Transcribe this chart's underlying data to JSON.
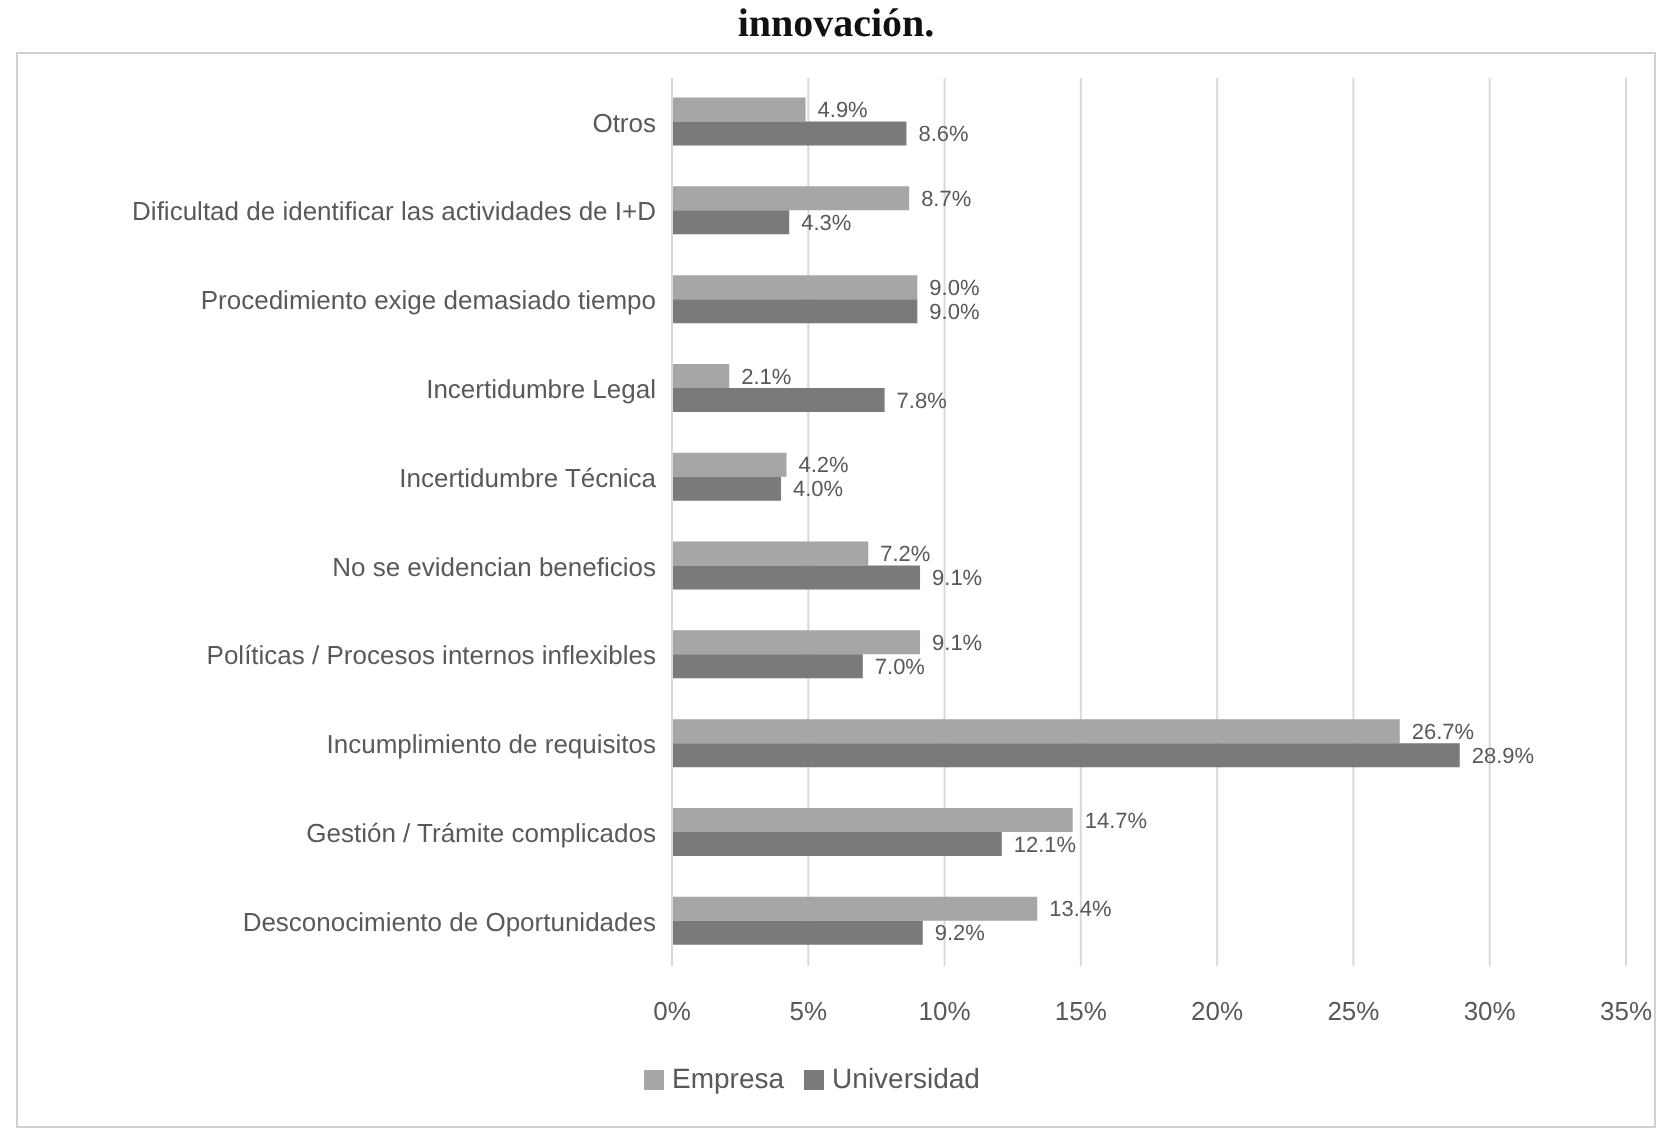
{
  "chart_data": {
    "type": "bar",
    "orientation": "horizontal",
    "title": "innovación.",
    "categories": [
      "Otros",
      "Dificultad de identificar las actividades de I+D",
      "Procedimiento exige demasiado tiempo",
      "Incertidumbre Legal",
      "Incertidumbre Técnica",
      "No se evidencian beneficios",
      "Políticas / Procesos internos inflexibles",
      "Incumplimiento de requisitos",
      "Gestión / Trámite complicados",
      "Desconocimiento de Oportunidades"
    ],
    "series": [
      {
        "name": "Empresa",
        "color": "#a6a6a6",
        "values": [
          4.9,
          8.7,
          9.0,
          2.1,
          4.2,
          7.2,
          9.1,
          26.7,
          14.7,
          13.4
        ],
        "value_labels": [
          "4.9%",
          "8.7%",
          "9.0%",
          "2.1%",
          "4.2%",
          "7.2%",
          "9.1%",
          "26.7%",
          "14.7%",
          "13.4%"
        ]
      },
      {
        "name": "Universidad",
        "color": "#7a7a7a",
        "values": [
          8.6,
          4.3,
          9.0,
          7.8,
          4.0,
          9.1,
          7.0,
          28.9,
          12.1,
          9.2
        ],
        "value_labels": [
          "8.6%",
          "4.3%",
          "9.0%",
          "7.8%",
          "4.0%",
          "9.1%",
          "7.0%",
          "28.9%",
          "12.1%",
          "9.2%"
        ]
      }
    ],
    "xlim": [
      0,
      35
    ],
    "xticks": [
      {
        "value": 0,
        "label": "0%"
      },
      {
        "value": 5,
        "label": "5%"
      },
      {
        "value": 10,
        "label": "10%"
      },
      {
        "value": 15,
        "label": "15%"
      },
      {
        "value": 20,
        "label": "20%"
      },
      {
        "value": 25,
        "label": "25%"
      },
      {
        "value": 30,
        "label": "30%"
      },
      {
        "value": 35,
        "label": "35%"
      }
    ],
    "grid": "x",
    "legend": "bottom"
  }
}
